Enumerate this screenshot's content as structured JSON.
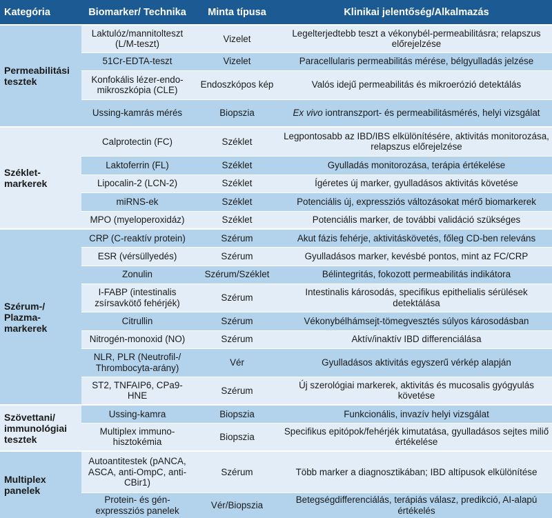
{
  "header": {
    "category": "Kategória",
    "biomarker": "Biomarker/ Technika",
    "sample": "Minta típusa",
    "significance": "Klinikai jelentőség/Alkalmazás"
  },
  "colors": {
    "header": "#1b5a92",
    "row_dark": "#b3d3ec",
    "row_light": "#e3edf7"
  },
  "groups": [
    {
      "category": "Permeabilitási tesztek",
      "shade": "dark",
      "rows": [
        {
          "biomarker": "Laktulóz/mannitolteszt (L/M-teszt)",
          "sample": "Vizelet",
          "significance": "Legelterjedtebb teszt a vékonybél-permeabilitásra; relapszus előrejelzése",
          "shade": "light",
          "h": 40
        },
        {
          "biomarker": "51Cr-EDTA-teszt",
          "sample": "Vizelet",
          "significance": "Paracellularis permeabilitás mérése, bélgyulladás jelzése",
          "shade": "dark",
          "h": 26
        },
        {
          "biomarker": "Konfokális lézer-endo-mikroszkópia (CLE)",
          "sample": "Endoszkópos kép",
          "significance": "Valós idejű permeabilitás és mikroerózió detektálás",
          "shade": "light",
          "h": 42
        },
        {
          "biomarker": "Ussing-kamrás mérés",
          "sample": "Biopszia",
          "significance_italic": "Ex vivo",
          "significance": " iontranszport- és permeabilitásmérés, helyi vizsgálat",
          "shade": "dark",
          "h": 40
        }
      ]
    },
    {
      "category": "Széklet-markerek",
      "shade": "light",
      "rows": [
        {
          "biomarker": "Calprotectin (FC)",
          "sample": "Széklet",
          "significance": "Legpontosabb az IBD/IBS elkülönítésére, aktivitás monitorozása, relapszus előrejelzése",
          "shade": "light",
          "h": 42
        },
        {
          "biomarker": "Laktoferrin (FL)",
          "sample": "Széklet",
          "significance": "Gyulladás monitorozása, terápia értékelése",
          "shade": "dark",
          "h": 27
        },
        {
          "biomarker": "Lipocalin-2 (LCN-2)",
          "sample": "Széklet",
          "significance": "Ígéretes új marker, gyulladásos aktivitás követése",
          "shade": "light",
          "h": 26
        },
        {
          "biomarker": "miRNS-ek",
          "sample": "Széklet",
          "significance": "Potenciális új, expressziós változásokat mérő biomarkerek",
          "shade": "dark",
          "h": 27
        },
        {
          "biomarker": "MPO (myeloperoxidáz)",
          "sample": "Széklet",
          "significance": "Potenciális marker, de további validáció szükséges",
          "shade": "light",
          "h": 26
        }
      ]
    },
    {
      "category": "Szérum-/ Plazma-markerek",
      "shade": "dark",
      "rows": [
        {
          "biomarker": "CRP (C-reaktív protein)",
          "sample": "Szérum",
          "significance": "Akut fázis fehérje, aktivitáskövetés, főleg CD-ben releváns",
          "shade": "dark",
          "h": 26
        },
        {
          "biomarker": "ESR (vérsüllyedés)",
          "sample": "Szérum",
          "significance": "Gyulladásos marker, kevésbé pontos, mint az FC/CRP",
          "shade": "light",
          "h": 27
        },
        {
          "biomarker": "Zonulin",
          "sample": "Szérum/Széklet",
          "significance": "Bélintegritás, fokozott permeabilitás indikátora",
          "shade": "dark",
          "h": 26
        },
        {
          "biomarker": "I-FABP (intestinalis zsírsavkötő fehérjék)",
          "sample": "Szérum",
          "significance": "Intestinalis károsodás, specifikus epithelialis sérülések detektálása",
          "shade": "light",
          "h": 41
        },
        {
          "biomarker": "Citrullin",
          "sample": "Szérum",
          "significance": "Vékonybélhámsejt-tömegvesztés súlyos károsodásban",
          "shade": "dark",
          "h": 27
        },
        {
          "biomarker": "Nitrogén-monoxid (NO)",
          "sample": "Szérum",
          "significance": "Aktív/inaktív IBD differenciálása",
          "shade": "light",
          "h": 26
        },
        {
          "biomarker": "NLR, PLR (Neutrofil-/ Thrombocyta-arány)",
          "sample": "Vér",
          "significance": "Gyulladásos aktivitás egyszerű vérkép alapján",
          "shade": "dark",
          "h": 41
        },
        {
          "biomarker": "ST2, TNFAIP6, CPa9-HNE",
          "sample": "Szérum",
          "significance": "Új szerológiai markerek, aktivitás és mucosalis gyógyulás követése",
          "shade": "light",
          "h": 41
        }
      ]
    },
    {
      "category": "Szövettani/ immunológiai tesztek",
      "shade": "light",
      "rows": [
        {
          "biomarker": "Ussing-kamra",
          "sample": "Biopszia",
          "significance": "Funkcionális, invazív helyi vizsgálat",
          "shade": "dark",
          "h": 26
        },
        {
          "biomarker": "Multiplex immuno-hisztokémia",
          "sample": "Biopszia",
          "significance": "Specifikus epitópok/fehérjék kimutatása, gyulladásos sejtes miliő értékelése",
          "shade": "light",
          "h": 41
        }
      ]
    },
    {
      "category": "Multiplex panelek",
      "shade": "dark",
      "rows": [
        {
          "biomarker": "Autoantitestek (pANCA, ASCA, anti-OmpC, anti-CBir1)",
          "sample": "Szérum",
          "significance": "Több marker a diagnosztikában; IBD altípusok elkülönítése",
          "shade": "light",
          "h": 60
        },
        {
          "biomarker": "Protein- és gén-expressziós panelek",
          "sample": "Vér/Biopszia",
          "significance": "Betegségdifferenciálás, terápiás válasz, predikció, AI-alapú értékelés",
          "shade": "dark",
          "h": 37
        }
      ]
    }
  ]
}
